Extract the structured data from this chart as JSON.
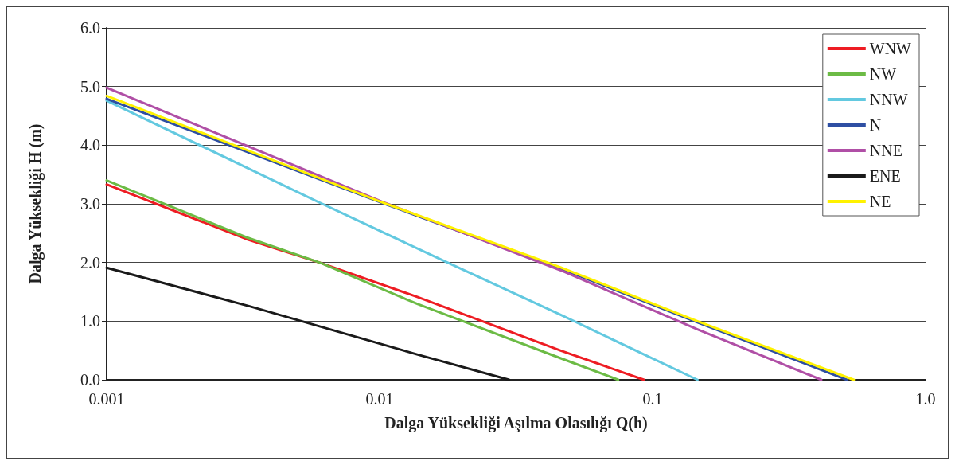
{
  "chart_data": {
    "type": "line",
    "xlabel": "Dalga Yüksekliği Aşılma Olasılığı Q(h)",
    "ylabel": "Dalga Yüksekliği H (m)",
    "log": "x",
    "grid": "y",
    "legend": "top right",
    "marker": "none",
    "line_style": "solid",
    "xlim": [
      0.001,
      1
    ],
    "xticks": [
      0.001,
      0.01,
      0.1,
      {
        "value": 1,
        "label": "1.0"
      }
    ],
    "ylim": [
      0,
      6
    ],
    "yticks": [
      {
        "value": 0,
        "label": "0.0"
      },
      {
        "value": 1,
        "label": "1.0"
      },
      {
        "value": 2,
        "label": "2.0"
      },
      {
        "value": 3,
        "label": "3.0"
      },
      {
        "value": 4,
        "label": "4.0"
      },
      {
        "value": 5,
        "label": "5.0"
      },
      {
        "value": 6,
        "label": "6.0"
      }
    ],
    "series": [
      {
        "name": "WNW",
        "color": "#ee1c23",
        "x": [
          0.001,
          0.00325,
          0.0061,
          0.0138,
          0.0459,
          0.093
        ],
        "values": [
          3.33,
          2.4,
          1.99,
          1.41,
          0.5,
          0
        ]
      },
      {
        "name": "NW",
        "color": "#6cbb45",
        "x": [
          0.001,
          0.00325,
          0.0061,
          0.0138,
          0.0459,
          0.0748
        ],
        "values": [
          3.4,
          2.43,
          1.99,
          1.29,
          0.37,
          0
        ]
      },
      {
        "name": "NNW",
        "color": "#63c9e0",
        "x": [
          0.001,
          0.0061,
          0.0179,
          0.0459,
          0.146
        ],
        "values": [
          4.76,
          3.01,
          1.99,
          1.11,
          0
        ]
      },
      {
        "name": "N",
        "color": "#2e4fa3",
        "x": [
          0.001,
          0.0103,
          0.0459,
          0.146,
          0.516
        ],
        "values": [
          4.79,
          3.01,
          1.9,
          0.98,
          0
        ]
      },
      {
        "name": "NNE",
        "color": "#b04fa6",
        "x": [
          0.001,
          0.0103,
          0.0459,
          0.146,
          0.415
        ],
        "values": [
          4.98,
          3.03,
          1.87,
          0.86,
          0
        ]
      },
      {
        "name": "ENE",
        "color": "#1a1a1a",
        "x": [
          0.001,
          0.00336,
          0.0138,
          0.0298
        ],
        "values": [
          1.91,
          1.25,
          0.43,
          0
        ]
      },
      {
        "name": "NE",
        "color": "#fff200",
        "x": [
          0.001,
          0.0103,
          0.0459,
          0.146,
          0.546
        ],
        "values": [
          4.84,
          3.02,
          1.92,
          1.0,
          0
        ]
      }
    ]
  }
}
